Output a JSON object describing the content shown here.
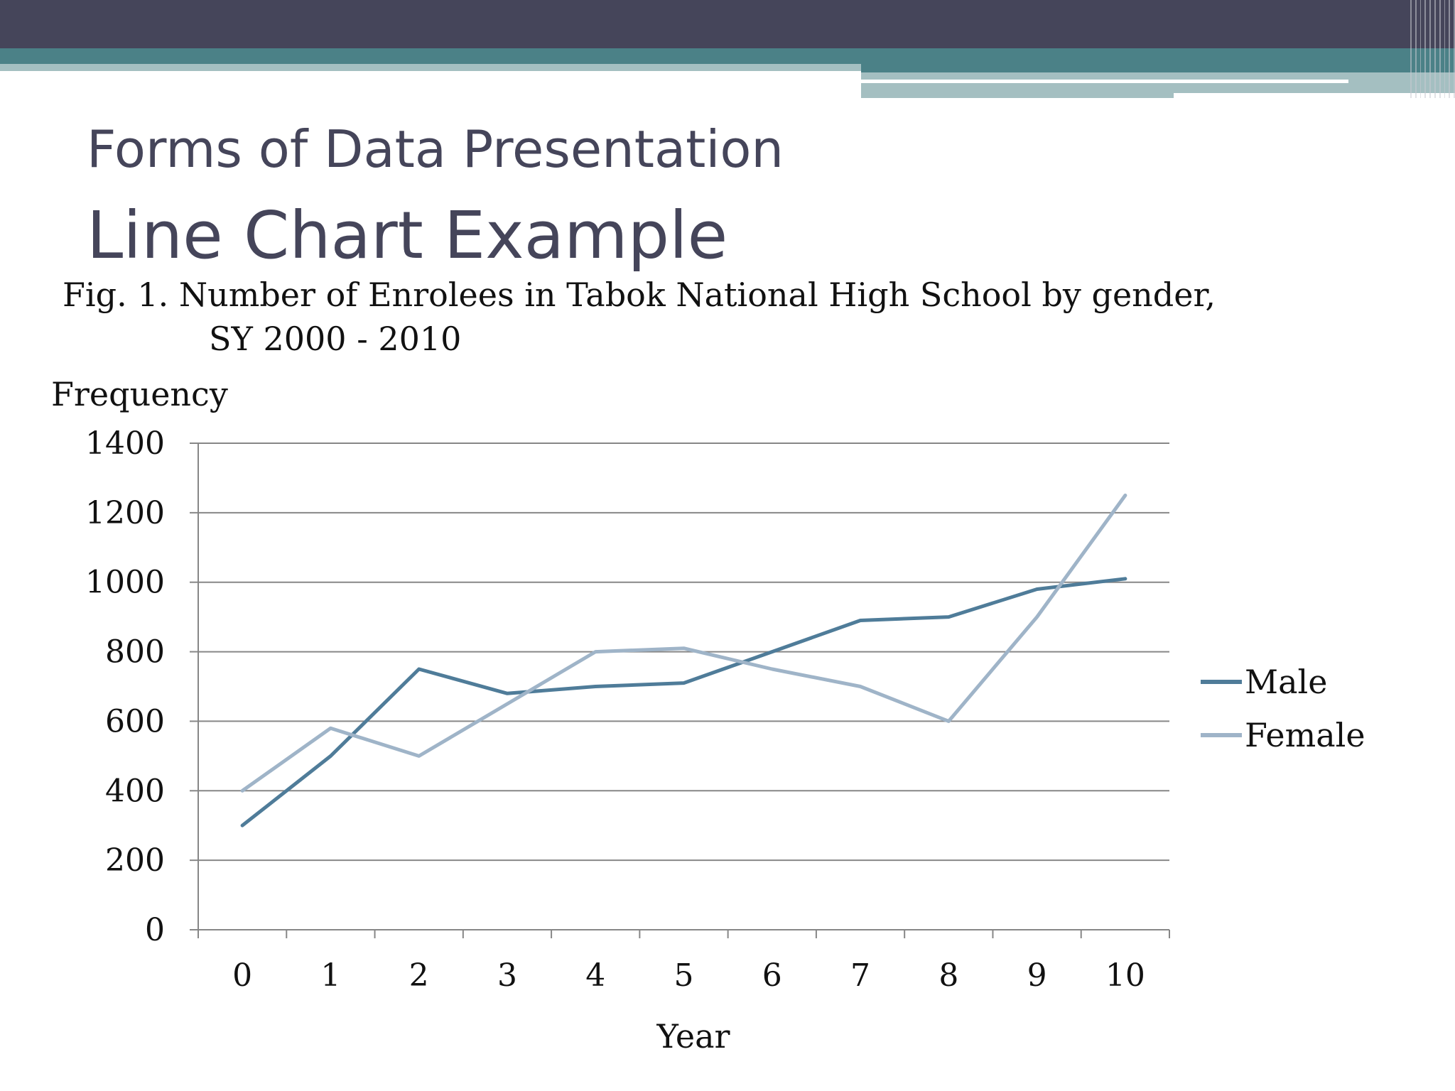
{
  "slide": {
    "title": "Forms of Data Presentation",
    "subtitle": "Line Chart Example"
  },
  "colors": {
    "header_dark": "#45455a",
    "header_teal": "#4b8187",
    "header_light": "#a4bfc1",
    "male": "#4f7c99",
    "female": "#9fb4c8",
    "grid": "#878787"
  },
  "chart_data": {
    "type": "line",
    "title": "Fig. 1. Number of Enrolees in Tabok National High School by gender,",
    "subtitle": "SY 2000 - 2010",
    "xlabel": "Year",
    "ylabel": "Frequency",
    "x": [
      "0",
      "1",
      "2",
      "3",
      "4",
      "5",
      "6",
      "7",
      "8",
      "9",
      "10"
    ],
    "ylim": [
      0,
      1400
    ],
    "yticks": [
      "0",
      "200",
      "400",
      "600",
      "800",
      "1000",
      "1200",
      "1400"
    ],
    "grid": true,
    "legend_position": "right",
    "series": [
      {
        "name": "Male",
        "values": [
          300,
          500,
          750,
          680,
          700,
          710,
          800,
          890,
          900,
          980,
          1010
        ]
      },
      {
        "name": "Female",
        "values": [
          400,
          580,
          500,
          650,
          800,
          810,
          750,
          700,
          600,
          900,
          1250
        ]
      }
    ]
  }
}
